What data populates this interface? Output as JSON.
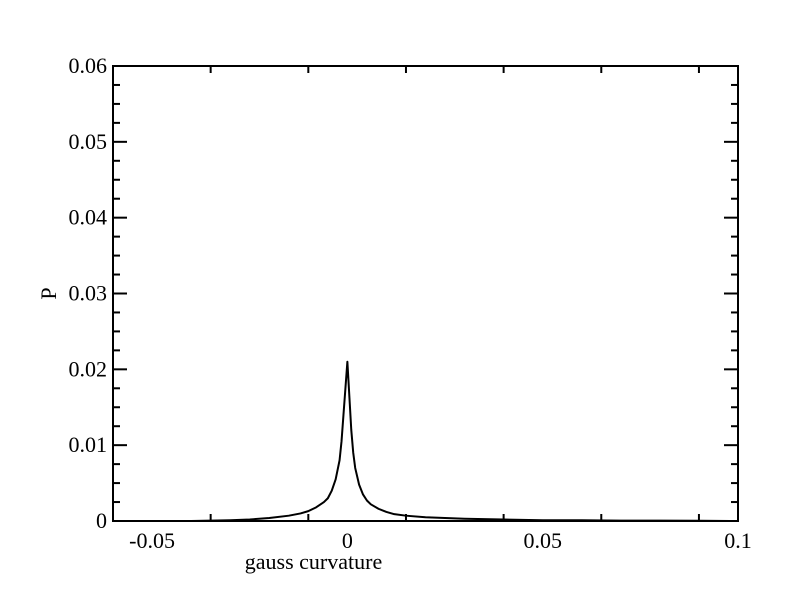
{
  "chart_data": {
    "type": "line",
    "title": "",
    "xlabel": "gauss curvature",
    "ylabel": "P",
    "xlim": [
      -0.06,
      0.1
    ],
    "ylim": [
      0,
      0.06
    ],
    "x_ticks": [
      -0.05,
      0,
      0.05,
      0.1
    ],
    "x_tick_labels": [
      "-0.05",
      "0",
      "0.05",
      "0.1"
    ],
    "y_ticks": [
      0,
      0.01,
      0.02,
      0.03,
      0.04,
      0.05,
      0.06
    ],
    "y_tick_labels": [
      "0",
      "0.01",
      "0.02",
      "0.03",
      "0.04",
      "0.05",
      "0.06"
    ],
    "grid": false,
    "legend": "none",
    "line_color": "#000000",
    "series": [
      {
        "x": [
          -0.04,
          -0.03,
          -0.025,
          -0.02,
          -0.015,
          -0.012,
          -0.01,
          -0.008,
          -0.006,
          -0.005,
          -0.004,
          -0.003,
          -0.002,
          -0.0015,
          -0.001,
          -0.0005,
          0,
          0.0005,
          0.001,
          0.0015,
          0.002,
          0.003,
          0.004,
          0.005,
          0.006,
          0.008,
          0.01,
          0.012,
          0.015,
          0.02,
          0.025,
          0.03,
          0.04,
          0.05,
          0.06,
          0.07,
          0.08,
          0.09,
          0.098
        ],
        "y": [
          0,
          0.0001,
          0.0002,
          0.0004,
          0.0007,
          0.001,
          0.0013,
          0.0018,
          0.0025,
          0.003,
          0.004,
          0.0055,
          0.008,
          0.0105,
          0.014,
          0.0175,
          0.021,
          0.0165,
          0.012,
          0.009,
          0.007,
          0.0048,
          0.0035,
          0.0027,
          0.0022,
          0.0016,
          0.0012,
          0.0009,
          0.0007,
          0.0005,
          0.0004,
          0.0003,
          0.0002,
          0.0001,
          0.0001,
          5e-05,
          5e-05,
          3e-05,
          0
        ]
      }
    ]
  }
}
